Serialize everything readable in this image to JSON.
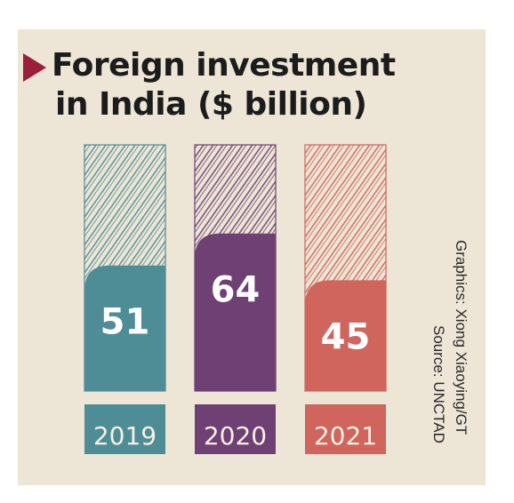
{
  "title": [
    "Foreign investment",
    "in India ($ billion)"
  ],
  "credits": {
    "graphics": "Graphics: Xiong Xiaoying/GT",
    "source": "Source: UNCTAD"
  },
  "chart_data": {
    "type": "bar",
    "categories": [
      "2019",
      "2020",
      "2021"
    ],
    "values": [
      51,
      64,
      45
    ],
    "colors": [
      "#4f8d96",
      "#6e4074",
      "#cf655c"
    ],
    "value_labels": [
      "51",
      "64",
      "45"
    ],
    "title": "Foreign investment in India ($ billion)",
    "legend": "none",
    "grid": false
  }
}
